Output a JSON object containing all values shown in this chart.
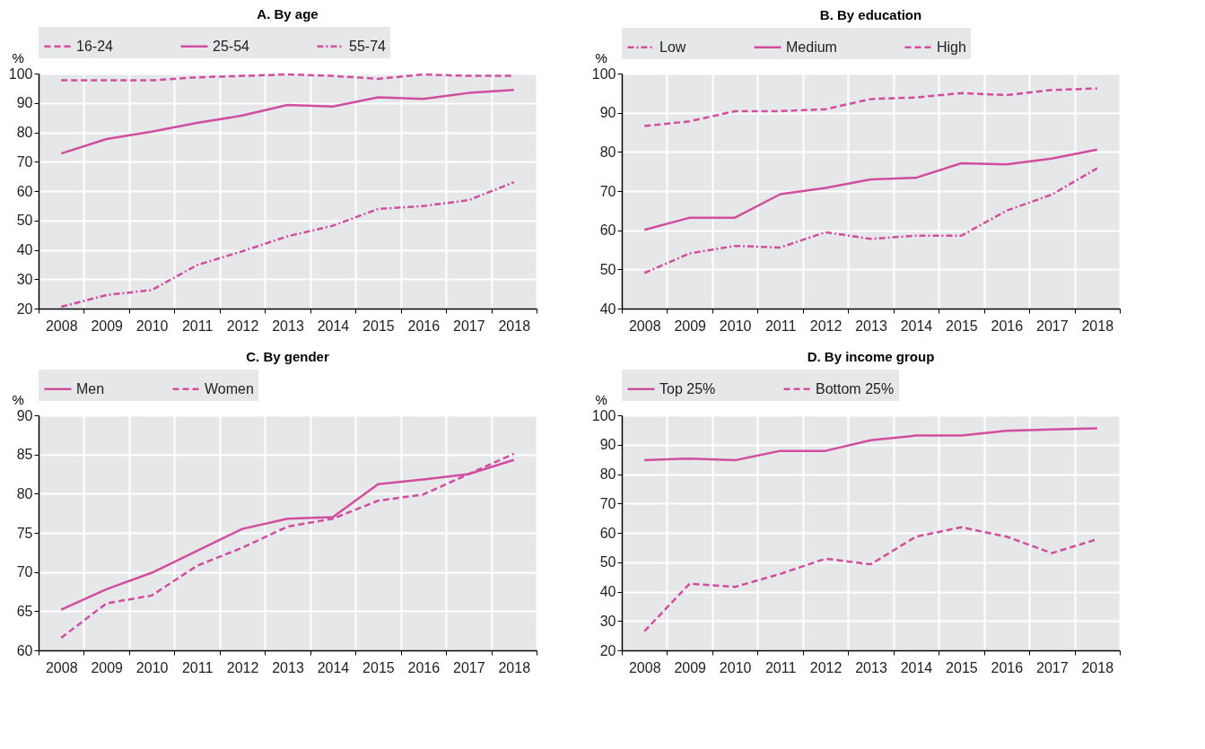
{
  "chart_data": [
    {
      "type": "line",
      "title": "A. By age",
      "ylabel": "%",
      "categories": [
        "2008",
        "2009",
        "2010",
        "2011",
        "2012",
        "2013",
        "2014",
        "2015",
        "2016",
        "2017",
        "2018"
      ],
      "ylim": [
        20,
        100
      ],
      "yticks": [
        20,
        30,
        40,
        50,
        60,
        70,
        80,
        90,
        100
      ],
      "grid": true,
      "legend": "top",
      "series": [
        {
          "name": "16-24",
          "color": "#d14e9f",
          "line_style": "dashed",
          "values": [
            97.7,
            97.7,
            97.7,
            98.7,
            99.2,
            99.7,
            99.2,
            98.2,
            99.7,
            99.2,
            99.2
          ]
        },
        {
          "name": "25-54",
          "color": "#d14e9f",
          "line_style": "solid",
          "values": [
            72.8,
            77.7,
            80.2,
            83.2,
            85.7,
            89.3,
            88.8,
            91.9,
            91.4,
            93.4,
            94.4
          ]
        },
        {
          "name": "55-74",
          "color": "#d14e9f",
          "line_style": "dashdot",
          "values": [
            20.6,
            24.6,
            26.3,
            34.8,
            39.5,
            44.6,
            48.2,
            53.9,
            54.9,
            56.9,
            63.0
          ]
        }
      ]
    },
    {
      "type": "line",
      "title": "B. By education",
      "ylabel": "%",
      "categories": [
        "2008",
        "2009",
        "2010",
        "2011",
        "2012",
        "2013",
        "2014",
        "2015",
        "2016",
        "2017",
        "2018"
      ],
      "ylim": [
        40,
        100
      ],
      "yticks": [
        40,
        50,
        60,
        70,
        80,
        90,
        100
      ],
      "grid": true,
      "legend": "top",
      "series": [
        {
          "name": "Low",
          "color": "#d14e9f",
          "line_style": "dashdot",
          "values": [
            49.1,
            54.1,
            56.0,
            55.6,
            59.5,
            57.8,
            58.6,
            58.6,
            65.0,
            69.1,
            75.8
          ]
        },
        {
          "name": "Medium",
          "color": "#d14e9f",
          "line_style": "solid",
          "values": [
            60.1,
            63.2,
            63.2,
            69.2,
            70.8,
            73.0,
            73.4,
            77.1,
            76.8,
            78.3,
            80.6
          ]
        },
        {
          "name": "High",
          "color": "#d14e9f",
          "line_style": "dashed",
          "values": [
            86.6,
            87.8,
            90.4,
            90.4,
            90.9,
            93.5,
            93.9,
            95.0,
            94.5,
            95.8,
            96.2
          ]
        }
      ]
    },
    {
      "type": "line",
      "title": "C. By gender",
      "ylabel": "%",
      "categories": [
        "2008",
        "2009",
        "2010",
        "2011",
        "2012",
        "2013",
        "2014",
        "2015",
        "2016",
        "2017",
        "2018"
      ],
      "ylim": [
        60,
        90
      ],
      "yticks": [
        60,
        65,
        70,
        75,
        80,
        85,
        90
      ],
      "grid": true,
      "legend": "top",
      "series": [
        {
          "name": "Men",
          "color": "#d14e9f",
          "line_style": "solid",
          "values": [
            65.2,
            67.8,
            69.9,
            72.7,
            75.5,
            76.8,
            77.0,
            81.2,
            81.8,
            82.5,
            84.3
          ]
        },
        {
          "name": "Women",
          "color": "#d14e9f",
          "line_style": "dashed",
          "values": [
            61.6,
            66.0,
            67.0,
            70.8,
            73.1,
            75.8,
            76.8,
            79.1,
            79.9,
            82.5,
            85.1
          ]
        }
      ]
    },
    {
      "type": "line",
      "title": "D. By income group",
      "ylabel": "%",
      "categories": [
        "2008",
        "2009",
        "2010",
        "2011",
        "2012",
        "2013",
        "2014",
        "2015",
        "2016",
        "2017",
        "2018"
      ],
      "ylim": [
        20,
        100
      ],
      "yticks": [
        20,
        30,
        40,
        50,
        60,
        70,
        80,
        90,
        100
      ],
      "grid": true,
      "legend": "top",
      "series": [
        {
          "name": "Top 25%",
          "color": "#d14e9f",
          "line_style": "solid",
          "values": [
            84.7,
            85.3,
            84.7,
            87.9,
            87.9,
            91.5,
            93.1,
            93.1,
            94.7,
            95.2,
            95.6
          ]
        },
        {
          "name": "Bottom 25%",
          "color": "#d14e9f",
          "line_style": "dashed",
          "values": [
            26.5,
            42.7,
            41.6,
            46.0,
            51.2,
            49.3,
            58.7,
            61.9,
            58.7,
            53.1,
            57.8
          ]
        }
      ]
    }
  ]
}
